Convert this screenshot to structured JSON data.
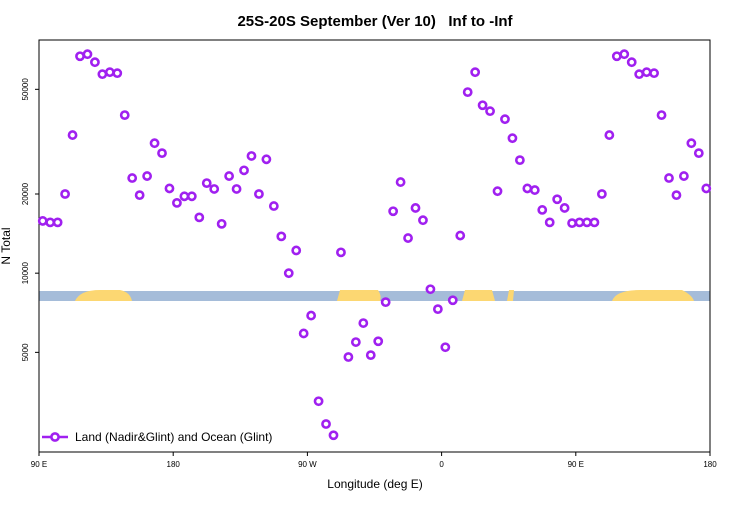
{
  "chart_data": {
    "type": "scatter",
    "title": "25S-20S September (Ver 10)   Inf to -Inf",
    "x_label": "Longitude (deg E)",
    "y_label": "N Total",
    "log_y": true,
    "legend": "bottom-left",
    "xlim": [
      90,
      540
    ],
    "xticks": [
      {
        "value": 90,
        "label": "90 E"
      },
      {
        "value": 180,
        "label": "180"
      },
      {
        "value": 270,
        "label": "90 W"
      },
      {
        "value": 360,
        "label": "0"
      },
      {
        "value": 450,
        "label": "90 E"
      },
      {
        "value": 540,
        "label": "180"
      }
    ],
    "ylim": [
      2090,
      77000
    ],
    "yticks": [
      5000,
      10000,
      20000,
      50000
    ],
    "series": [
      {
        "name": "Land (Nadir&Glint) and Ocean (Glint)",
        "color": "#a020f0",
        "x": [
          92.5,
          97.5,
          102.5,
          107.5,
          112.5,
          117.5,
          122.5,
          127.5,
          132.5,
          137.5,
          142.5,
          147.5,
          152.5,
          157.5,
          162.5,
          167.5,
          172.5,
          177.5,
          182.5,
          187.5,
          192.5,
          197.5,
          202.5,
          207.5,
          212.5,
          217.5,
          222.5,
          227.5,
          232.5,
          237.5,
          242.5,
          247.5,
          252.5,
          257.5,
          262.5,
          267.5,
          272.5,
          277.5,
          282.5,
          287.5,
          292.5,
          297.5,
          302.5,
          307.5,
          312.5,
          317.5,
          322.5,
          327.5,
          332.5,
          337.5,
          342.5,
          347.5,
          352.5,
          357.5,
          362.5,
          367.5,
          372.5,
          377.5,
          382.5,
          387.5,
          392.5,
          397.5,
          402.5,
          407.5,
          412.5,
          417.5,
          422.5,
          427.5,
          432.5,
          437.5,
          442.5,
          447.5,
          452.5,
          457.5,
          462.5,
          467.5,
          472.5,
          477.5,
          482.5,
          487.5,
          492.5,
          497.5,
          502.5,
          507.5,
          512.5,
          517.5,
          522.5,
          527.5,
          532.5,
          537.5
        ],
        "values": [
          15800,
          15600,
          15600,
          20000,
          33500,
          66800,
          68000,
          63400,
          57100,
          58100,
          57600,
          39900,
          23000,
          19800,
          23400,
          31200,
          28600,
          21000,
          18500,
          19600,
          19600,
          16300,
          22000,
          20900,
          15400,
          23400,
          20900,
          24600,
          27900,
          20000,
          27100,
          18000,
          13800,
          10000,
          12200,
          5900,
          6900,
          3260,
          2670,
          2420,
          12000,
          4800,
          5470,
          6460,
          4880,
          5510,
          7760,
          17200,
          22200,
          13600,
          17700,
          15900,
          8690,
          7300,
          5230,
          7890,
          13900,
          48800,
          58100,
          43500,
          41300,
          20500,
          38500,
          32600,
          26900,
          21000,
          20700,
          17400,
          15600,
          19100,
          17700,
          15500,
          15600,
          15600,
          15600,
          20000,
          33500,
          66800,
          68000,
          63400,
          57100,
          58100,
          57600,
          39900,
          23000,
          19800,
          23400,
          31200,
          28600,
          21000
        ]
      }
    ]
  }
}
